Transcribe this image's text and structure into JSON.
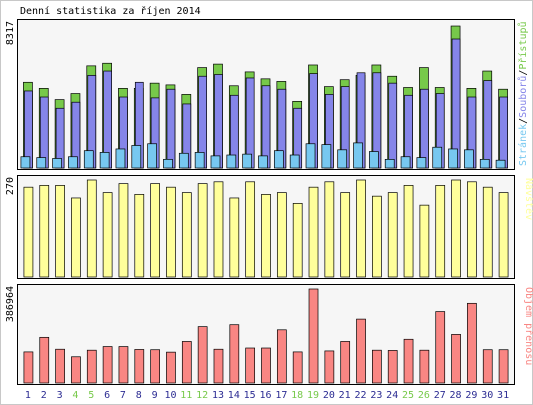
{
  "title": "Denní statistika za říjen 2014",
  "colors": {
    "hits": "#77c94a",
    "files": "#8585e9",
    "pages": "#77c8f0",
    "visits": "#ffff9b",
    "volume": "#f98683",
    "weekend_day": "#77c94a",
    "day": "#2c2c93",
    "frame_bg": "#f6f6f6",
    "outer_bg": "#c8c8c8",
    "border": "#000000"
  },
  "chart_data": [
    {
      "type": "bar",
      "title": "Denní statistika za říjen 2014",
      "categories": [
        "1",
        "2",
        "3",
        "4",
        "5",
        "6",
        "7",
        "8",
        "9",
        "10",
        "11",
        "12",
        "13",
        "14",
        "15",
        "16",
        "17",
        "18",
        "19",
        "20",
        "21",
        "22",
        "23",
        "24",
        "25",
        "26",
        "27",
        "28",
        "29",
        "30",
        "31"
      ],
      "weekend_days": [
        "4",
        "5",
        "11",
        "12",
        "18",
        "19",
        "25",
        "26"
      ],
      "ylabel_max": "8317",
      "ylim": [
        0,
        8317
      ],
      "legend": {
        "pages": "Stránek",
        "sep1": "/",
        "files": "Souborů",
        "sep2": "/",
        "hits": "Přístupů"
      },
      "series": [
        {
          "name": "Přístupů",
          "values": [
            4950,
            4600,
            3950,
            4300,
            5900,
            6050,
            4600,
            4600,
            4900,
            4800,
            4250,
            5800,
            6000,
            4750,
            5550,
            5150,
            5000,
            3850,
            5950,
            4700,
            5100,
            5350,
            5950,
            5300,
            4650,
            5800,
            4650,
            8200,
            4600,
            5600,
            4550
          ]
        },
        {
          "name": "Souborů",
          "values": [
            4450,
            4100,
            3450,
            3800,
            5350,
            5600,
            4100,
            4950,
            4050,
            4550,
            3700,
            5300,
            5400,
            4200,
            5200,
            4750,
            4550,
            3450,
            5450,
            4250,
            4700,
            5500,
            5500,
            4900,
            4200,
            4550,
            4300,
            7450,
            4100,
            5050,
            4100
          ]
        },
        {
          "name": "Stránek",
          "values": [
            650,
            600,
            550,
            650,
            1000,
            900,
            1100,
            1300,
            1400,
            500,
            850,
            900,
            700,
            750,
            800,
            700,
            1000,
            750,
            1400,
            1350,
            1050,
            1450,
            950,
            500,
            650,
            600,
            1200,
            1100,
            1050,
            500,
            450
          ]
        }
      ]
    },
    {
      "type": "bar",
      "ylabel_max": "270",
      "ylim": [
        0,
        270
      ],
      "legend": {
        "visits": "Návštěv"
      },
      "series": [
        {
          "name": "Návštěv",
          "values": [
            250,
            255,
            255,
            220,
            270,
            235,
            260,
            230,
            260,
            250,
            235,
            260,
            265,
            220,
            265,
            230,
            235,
            205,
            250,
            265,
            235,
            270,
            225,
            235,
            255,
            200,
            255,
            270,
            265,
            250,
            235
          ]
        }
      ]
    },
    {
      "type": "bar",
      "ylabel_max": "386964",
      "ylim": [
        0,
        386964
      ],
      "legend": {
        "volume": "Objem přenosu"
      },
      "series": [
        {
          "name": "Objem přenosu",
          "values": [
            128000,
            188000,
            139000,
            108000,
            135000,
            150000,
            150000,
            138000,
            137000,
            127000,
            171000,
            232000,
            139000,
            240000,
            144000,
            144000,
            219000,
            128000,
            386964,
            132000,
            171000,
            263000,
            135000,
            134000,
            180000,
            135000,
            294000,
            200000,
            328000,
            137000,
            137000
          ]
        }
      ]
    }
  ]
}
